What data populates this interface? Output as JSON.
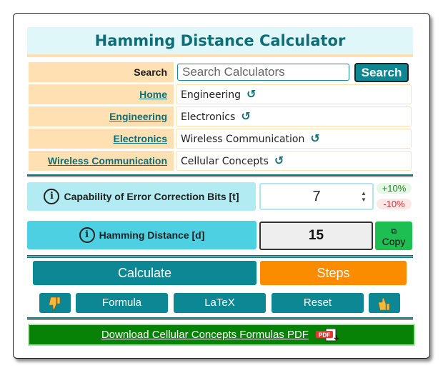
{
  "title": "Hamming Distance Calculator",
  "search": {
    "label": "Search",
    "placeholder": "Search Calculators",
    "button": "Search"
  },
  "breadcrumb_rows": [
    {
      "label": "Home",
      "value": "Engineering"
    },
    {
      "label": "Engineering",
      "value": "Electronics"
    },
    {
      "label": "Electronics",
      "value": "Wireless Communication"
    },
    {
      "label": "Wireless Communication",
      "value": "Cellular Concepts"
    }
  ],
  "refresh_glyph": "↺",
  "input_field": {
    "label": "Capability of Error Correction Bits [t]",
    "value": "7",
    "plus": "+10%",
    "minus": "-10%"
  },
  "output_field": {
    "label": "Hamming Distance [d]",
    "value": "15",
    "copy_label": "Copy"
  },
  "buttons": {
    "calculate": "Calculate",
    "steps": "Steps",
    "formula": "Formula",
    "latex": "LaTeX",
    "reset": "Reset"
  },
  "download": {
    "text": "Download Cellular Concepts Formulas PDF",
    "icon_text": "PDF"
  },
  "colors": {
    "teal": "#0e8794",
    "orange": "#fb8c00",
    "peach": "#ffe0b2",
    "light_cyan": "#b2ebf2",
    "green": "#078207"
  },
  "icons": {
    "info": "info-icon",
    "thumb_down": "thumb-down-icon",
    "thumb_up": "thumb-up-icon",
    "copy": "copy-icon",
    "pdf": "pdf-icon"
  }
}
